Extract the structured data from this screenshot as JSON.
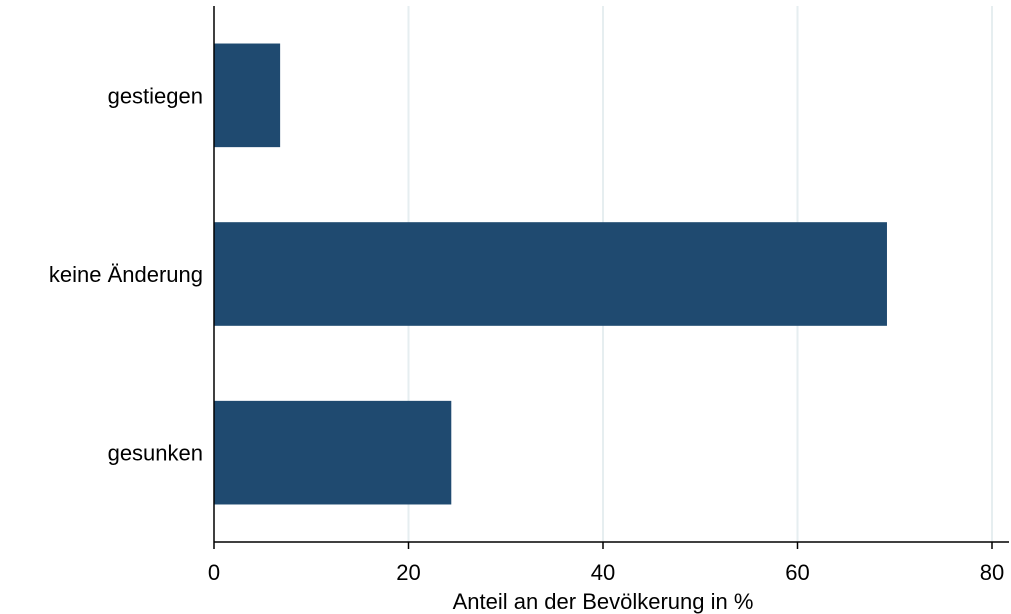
{
  "chart_data": {
    "type": "bar",
    "orientation": "horizontal",
    "categories": [
      "gestiegen",
      "keine Änderung",
      "gesunken"
    ],
    "values": [
      6.8,
      69.2,
      24.4
    ],
    "xlabel": "Anteil an der Bevölkerung in %",
    "ylabel": "",
    "xlim": [
      0,
      80
    ],
    "xticks": [
      0,
      20,
      40,
      60,
      80
    ],
    "grid": "vertical",
    "bar_color": "#1f4a70",
    "grid_color": "#e6eef0"
  }
}
